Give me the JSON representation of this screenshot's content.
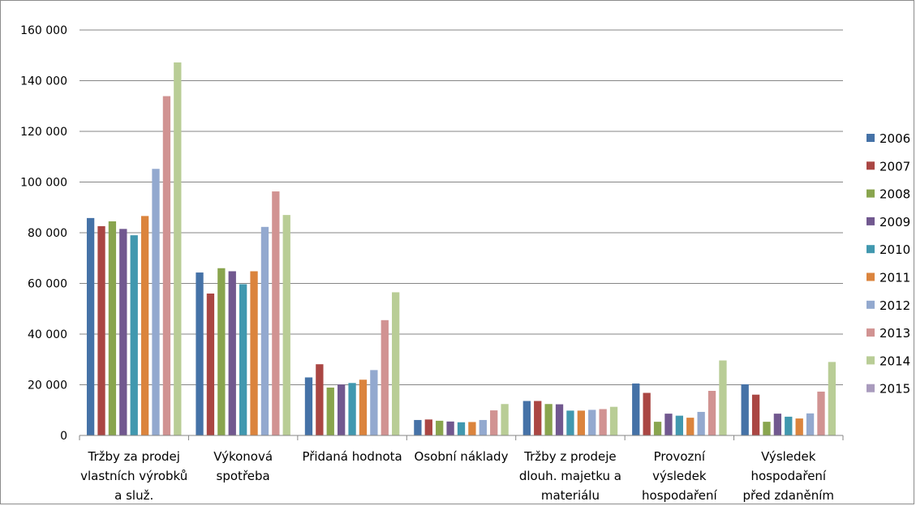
{
  "chart_data": {
    "type": "bar",
    "title": "",
    "xlabel": "",
    "ylabel": "",
    "ylim": [
      0,
      160000
    ],
    "y_ticks": [
      {
        "value": 0,
        "label": "0"
      },
      {
        "value": 20000,
        "label": "20 000"
      },
      {
        "value": 40000,
        "label": "40 000"
      },
      {
        "value": 60000,
        "label": "60 000"
      },
      {
        "value": 80000,
        "label": "80 000"
      },
      {
        "value": 100000,
        "label": "100 000"
      },
      {
        "value": 120000,
        "label": "120 000"
      },
      {
        "value": 140000,
        "label": "140 000"
      },
      {
        "value": 160000,
        "label": "160 000"
      }
    ],
    "grid": true,
    "legend_position": "right",
    "categories": [
      [
        "Tržby za prodej",
        "vlastních výrobků",
        "a služ."
      ],
      [
        "Výkonová",
        "spotřeba"
      ],
      [
        "Přidaná hodnota"
      ],
      [
        "Osobní náklady"
      ],
      [
        "Tržby z prodeje",
        "dlouh. majetku a",
        "materiálu"
      ],
      [
        "Provozní",
        "výsledek",
        "hospodaření"
      ],
      [
        "Výsledek",
        "hospodaření",
        "před zdaněním"
      ]
    ],
    "series": [
      {
        "name": "2006",
        "color": "#4572a7",
        "values": [
          85800,
          64300,
          22900,
          6100,
          13600,
          20500,
          20200
        ]
      },
      {
        "name": "2007",
        "color": "#aa4643",
        "values": [
          82600,
          56000,
          28100,
          6300,
          13600,
          16800,
          16100
        ]
      },
      {
        "name": "2008",
        "color": "#89a54e",
        "values": [
          84500,
          66000,
          18900,
          5800,
          12400,
          5400,
          5400
        ]
      },
      {
        "name": "2009",
        "color": "#71588f",
        "values": [
          81500,
          64800,
          20100,
          5500,
          12300,
          8600,
          8600
        ]
      },
      {
        "name": "2010",
        "color": "#4198af",
        "values": [
          79000,
          59700,
          20700,
          5200,
          9800,
          7800,
          7400
        ]
      },
      {
        "name": "2011",
        "color": "#db843d",
        "values": [
          86600,
          64800,
          22000,
          5300,
          9800,
          7000,
          6700
        ]
      },
      {
        "name": "2012",
        "color": "#93a9cf",
        "values": [
          105200,
          82300,
          25800,
          6100,
          10100,
          9300,
          8700
        ]
      },
      {
        "name": "2013",
        "color": "#d19392",
        "values": [
          133900,
          96300,
          45500,
          9900,
          10400,
          17600,
          17300
        ]
      },
      {
        "name": "2014",
        "color": "#b9cd96",
        "values": [
          147200,
          87000,
          56500,
          12400,
          11300,
          29600,
          29000
        ]
      },
      {
        "name": "2015",
        "color": "#a99bbd",
        "values": [
          null,
          null,
          null,
          null,
          null,
          null,
          null
        ]
      }
    ]
  }
}
